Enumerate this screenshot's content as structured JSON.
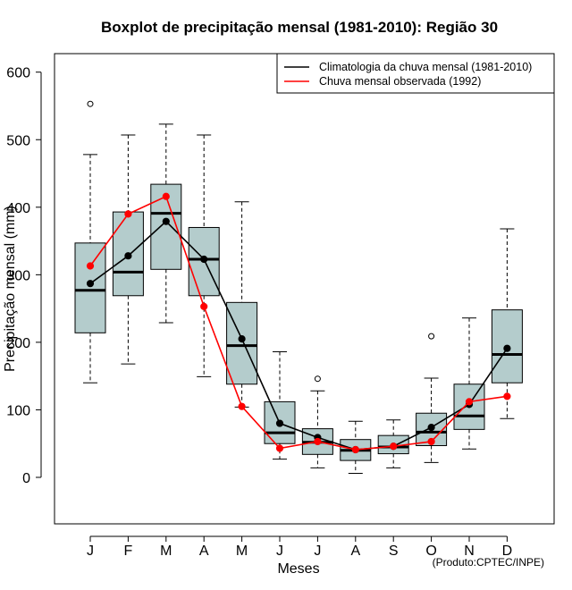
{
  "chart_data": {
    "type": "boxplot",
    "title": "Boxplot de precipitação mensal (1981-2010): Região 30",
    "xlabel": "Meses",
    "ylabel": "Precipitação mensal (mm)",
    "credit": "(Produto:CPTEC/INPE)",
    "ylim": [
      -70,
      630
    ],
    "yticks": [
      0,
      100,
      200,
      300,
      400,
      500,
      600
    ],
    "categories": [
      "J",
      "F",
      "M",
      "A",
      "M",
      "J",
      "J",
      "A",
      "S",
      "O",
      "N",
      "D"
    ],
    "boxes": [
      {
        "whisker_low": 140,
        "q1": 214,
        "median": 277,
        "q3": 347,
        "whisker_high": 478,
        "outliers": [
          553
        ]
      },
      {
        "whisker_low": 168,
        "q1": 269,
        "median": 304,
        "q3": 393,
        "whisker_high": 507,
        "outliers": []
      },
      {
        "whisker_low": 229,
        "q1": 308,
        "median": 391,
        "q3": 434,
        "whisker_high": 523,
        "outliers": []
      },
      {
        "whisker_low": 149,
        "q1": 269,
        "median": 323,
        "q3": 370,
        "whisker_high": 507,
        "outliers": []
      },
      {
        "whisker_low": 104,
        "q1": 138,
        "median": 195,
        "q3": 259,
        "whisker_high": 408,
        "outliers": []
      },
      {
        "whisker_low": 27,
        "q1": 50,
        "median": 66,
        "q3": 112,
        "whisker_high": 186,
        "outliers": []
      },
      {
        "whisker_low": 14,
        "q1": 34,
        "median": 52,
        "q3": 72,
        "whisker_high": 128,
        "outliers": [
          146
        ]
      },
      {
        "whisker_low": 6,
        "q1": 25,
        "median": 40,
        "q3": 56,
        "whisker_high": 83,
        "outliers": []
      },
      {
        "whisker_low": 14,
        "q1": 35,
        "median": 45,
        "q3": 62,
        "whisker_high": 85,
        "outliers": []
      },
      {
        "whisker_low": 22,
        "q1": 47,
        "median": 67,
        "q3": 95,
        "whisker_high": 147,
        "outliers": [
          209
        ]
      },
      {
        "whisker_low": 42,
        "q1": 71,
        "median": 91,
        "q3": 138,
        "whisker_high": 236,
        "outliers": []
      },
      {
        "whisker_low": 87,
        "q1": 140,
        "median": 182,
        "q3": 248,
        "whisker_high": 368,
        "outliers": []
      }
    ],
    "series": [
      {
        "name": "Climatologia da chuva mensal (1981-2010)",
        "color": "#000000",
        "values": [
          287,
          328,
          379,
          323,
          205,
          80,
          59,
          41,
          46,
          74,
          108,
          191
        ]
      },
      {
        "name": "Chuva mensal observada (1992)",
        "color": "#ff0000",
        "values": [
          313,
          390,
          416,
          253,
          105,
          43,
          53,
          41,
          46,
          53,
          112,
          120
        ]
      }
    ],
    "box_fill": "#b4cccc",
    "legend_position": "top-right"
  }
}
